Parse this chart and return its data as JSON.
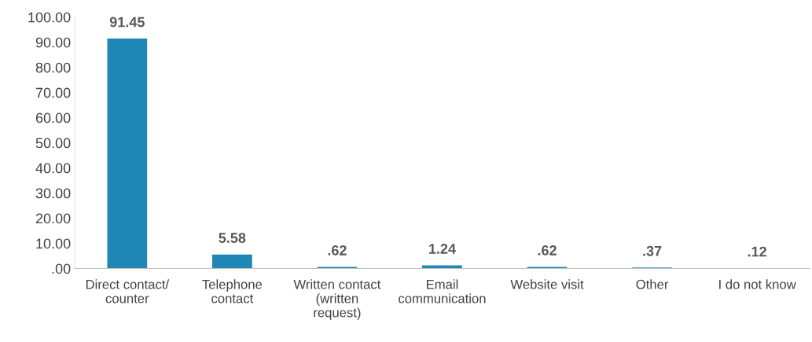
{
  "chart_data": {
    "type": "bar",
    "categories": [
      "Direct contact/\ncounter",
      "Telephone\ncontact",
      "Written contact\n(written\nrequest)",
      "Email\ncommunication",
      "Website visit",
      "Other",
      "I do not know"
    ],
    "values": [
      91.45,
      5.58,
      0.62,
      1.24,
      0.62,
      0.37,
      0.12
    ],
    "value_labels": [
      "91.45",
      "5.58",
      ".62",
      "1.24",
      ".62",
      ".37",
      ".12"
    ],
    "color": "#1f87b6",
    "ylim": [
      0,
      100
    ],
    "yticks": [
      {
        "value": 0,
        "label": ".00"
      },
      {
        "value": 10,
        "label": "10.00"
      },
      {
        "value": 20,
        "label": "20.00"
      },
      {
        "value": 30,
        "label": "30.00"
      },
      {
        "value": 40,
        "label": "40.00"
      },
      {
        "value": 50,
        "label": "50.00"
      },
      {
        "value": 60,
        "label": "60.00"
      },
      {
        "value": 70,
        "label": "70.00"
      },
      {
        "value": 80,
        "label": "80.00"
      },
      {
        "value": 90,
        "label": "90.00"
      },
      {
        "value": 100,
        "label": "100.00"
      }
    ],
    "grid": false
  }
}
